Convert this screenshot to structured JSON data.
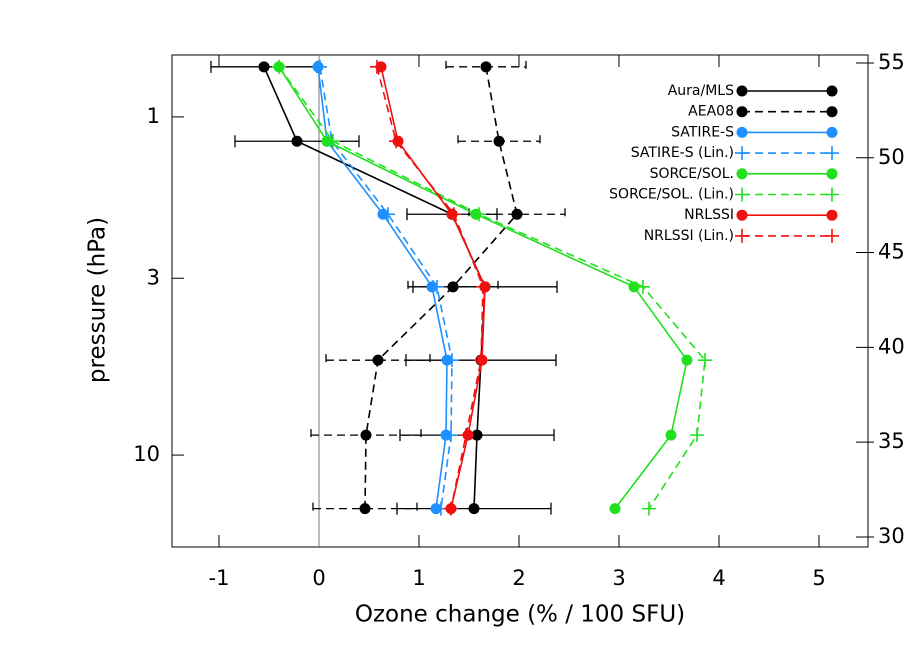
{
  "chart_data": {
    "type": "line",
    "x_label": "Ozone change (% / 100 SFU)",
    "y_label": "pressure (hPa)",
    "y": [
      0.711,
      1.18,
      1.94,
      3.18,
      5.24,
      8.73,
      14.4
    ],
    "xlim": [
      -1.47,
      5.49
    ],
    "xticks": [
      -1,
      0,
      1,
      2,
      3,
      4,
      5
    ],
    "ylim": [
      0.656,
      18.7
    ],
    "yticks": [
      1,
      3,
      10
    ],
    "y_log_scale": true,
    "y_inverted": true,
    "y2lim": [
      29.47,
      55.42
    ],
    "y2ticks": [
      30,
      35,
      40,
      45,
      50,
      55
    ],
    "zero_line": true,
    "legend": "upper right",
    "series": [
      {
        "name": "Aura/MLS",
        "color": "#000000",
        "dashed": false,
        "marker": "circle",
        "values": [
          -0.55,
          -0.22,
          1.33,
          1.66,
          1.62,
          1.58,
          1.55
        ],
        "errors": [
          0.53,
          0.62,
          0.45,
          0.72,
          0.75,
          0.77,
          0.77
        ]
      },
      {
        "name": "AEA08",
        "color": "#000000",
        "dashed": true,
        "marker": "circle",
        "values": [
          1.67,
          1.8,
          1.98,
          1.34,
          0.59,
          0.47,
          0.46
        ],
        "errors": [
          0.4,
          0.41,
          0.48,
          0.45,
          0.52,
          0.55,
          0.52
        ]
      },
      {
        "name": "SATIRE-S",
        "color": "#1e90ff",
        "dashed": false,
        "marker": "circle",
        "values": [
          -0.01,
          0.08,
          0.64,
          1.13,
          1.28,
          1.27,
          1.17
        ]
      },
      {
        "name": "SATIRE-S (Lin.)",
        "color": "#1e90ff",
        "dashed": true,
        "marker": "plus",
        "values": [
          0.01,
          0.13,
          0.69,
          1.18,
          1.33,
          1.32,
          1.22
        ]
      },
      {
        "name": "SORCE/SOL.",
        "color": "#22e01e",
        "dashed": false,
        "marker": "circle",
        "values": [
          -0.4,
          0.08,
          1.57,
          3.15,
          3.68,
          3.52,
          2.96
        ]
      },
      {
        "name": "SORCE/SOL. (Lin.)",
        "color": "#22e01e",
        "dashed": true,
        "marker": "plus",
        "values": [
          -0.4,
          0.14,
          1.6,
          3.24,
          3.86,
          3.78,
          3.3
        ]
      },
      {
        "name": "NRLSSI",
        "color": "#f01010",
        "dashed": false,
        "marker": "circle",
        "values": [
          0.62,
          0.79,
          1.33,
          1.66,
          1.63,
          1.49,
          1.32
        ]
      },
      {
        "name": "NRLSSI (Lin.)",
        "color": "#f01010",
        "dashed": true,
        "marker": "plus",
        "values": [
          0.58,
          0.77,
          1.35,
          1.64,
          1.62,
          1.47,
          1.32
        ]
      }
    ]
  }
}
